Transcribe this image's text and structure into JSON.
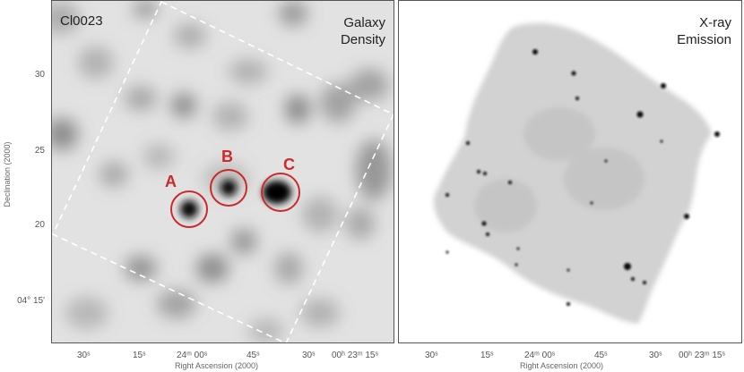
{
  "left_panel": {
    "title": "Cl0023",
    "label_line1": "Galaxy",
    "label_line2": "Density",
    "markers": [
      "A",
      "B",
      "C"
    ],
    "marker_color": "#cc2a2a"
  },
  "right_panel": {
    "label_line1": "X-ray",
    "label_line2": "Emission"
  },
  "y_axis": {
    "title": "Declination (2000)",
    "ticks": [
      "30",
      "25",
      "20",
      "04° 15'"
    ]
  },
  "x_axis": {
    "title": "Right Ascension (2000)",
    "left_ticks": [
      "30ˢ",
      "15ˢ",
      "24ᵐ 00ˢ",
      "45ˢ",
      "30ˢ",
      "00ʰ 23ᵐ 15ˢ"
    ],
    "right_ticks": [
      "30ˢ",
      "15ˢ",
      "24ᵐ 00ˢ",
      "45ˢ",
      "30ˢ",
      "00ʰ 23ᵐ 15ˢ"
    ]
  }
}
